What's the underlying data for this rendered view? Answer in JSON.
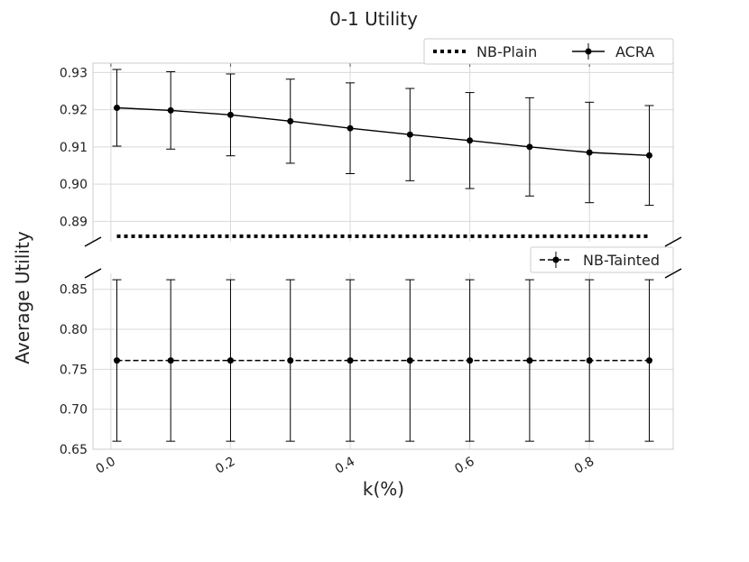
{
  "title": "0-1 Utility",
  "xlabel": "k(%)",
  "ylabel": "Average Utility",
  "chart_data": {
    "type": "line",
    "title": "0-1 Utility",
    "xlabel": "k(%)",
    "ylabel": "Average Utility",
    "broken_y_axis": true,
    "grid": true,
    "xlim": [
      -0.03,
      0.94
    ],
    "x_ticks": [
      0.0,
      0.2,
      0.4,
      0.6,
      0.8
    ],
    "x_tick_labels": [
      "0.0",
      "0.2",
      "0.4",
      "0.6",
      "0.8"
    ],
    "upper_panel": {
      "ylim": [
        0.8845,
        0.9325
      ],
      "y_ticks": [
        0.89,
        0.9,
        0.91,
        0.92,
        0.93
      ],
      "y_tick_labels": [
        "0.89",
        "0.90",
        "0.91",
        "0.92",
        "0.93"
      ],
      "legend_placement": "top-right"
    },
    "lower_panel": {
      "ylim": [
        0.65,
        0.87
      ],
      "y_ticks": [
        0.65,
        0.7,
        0.75,
        0.8,
        0.85
      ],
      "y_tick_labels": [
        "0.65",
        "0.70",
        "0.75",
        "0.80",
        "0.85"
      ],
      "legend_placement": "top-right"
    },
    "series": [
      {
        "name": "NB-Plain",
        "panel": "upper",
        "style": "dotted",
        "color": "#000000",
        "x": [
          0.01,
          0.9
        ],
        "values": [
          0.886,
          0.886
        ]
      },
      {
        "name": "ACRA",
        "panel": "upper",
        "style": "solid-marker",
        "color": "#000000",
        "x": [
          0.01,
          0.1,
          0.2,
          0.3,
          0.4,
          0.5,
          0.6,
          0.7,
          0.8,
          0.9
        ],
        "values": [
          0.9205,
          0.9198,
          0.9186,
          0.9169,
          0.915,
          0.9133,
          0.9117,
          0.91,
          0.9085,
          0.9077
        ],
        "error": [
          0.0103,
          0.0104,
          0.011,
          0.0113,
          0.0122,
          0.0124,
          0.0129,
          0.0132,
          0.0135,
          0.0134
        ]
      },
      {
        "name": "NB-Tainted",
        "panel": "lower",
        "style": "dashed-marker",
        "color": "#000000",
        "x": [
          0.01,
          0.1,
          0.2,
          0.3,
          0.4,
          0.5,
          0.6,
          0.7,
          0.8,
          0.9
        ],
        "values": [
          0.761,
          0.761,
          0.761,
          0.761,
          0.761,
          0.761,
          0.761,
          0.761,
          0.761,
          0.761
        ],
        "error": [
          0.101,
          0.101,
          0.101,
          0.101,
          0.101,
          0.101,
          0.101,
          0.101,
          0.101,
          0.101
        ]
      }
    ]
  }
}
